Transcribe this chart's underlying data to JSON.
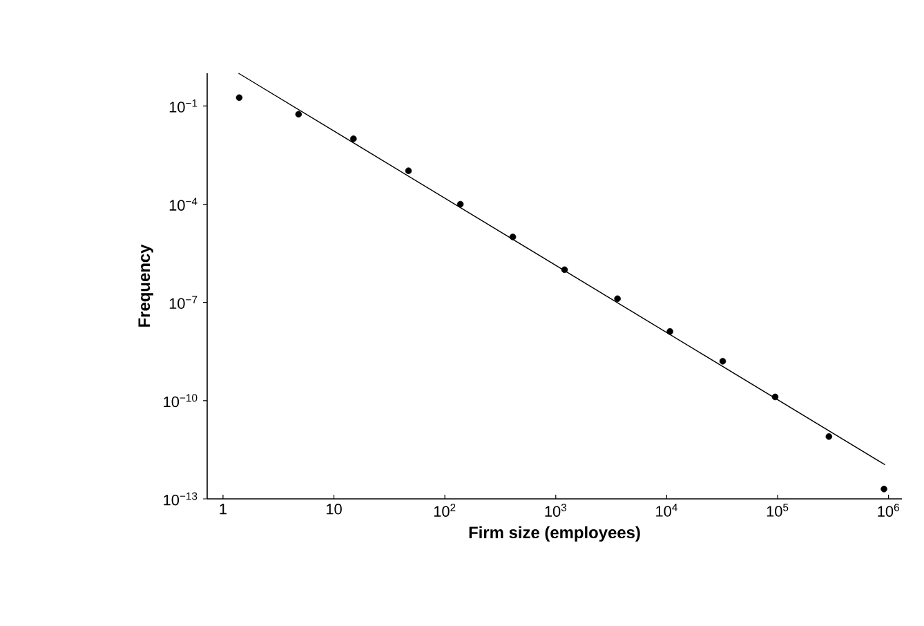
{
  "chart_data": {
    "type": "scatter",
    "xlabel": "Firm size (employees)",
    "ylabel": "Frequency",
    "log": "xy",
    "xlim": [
      0.72,
      1320000
    ],
    "ylim": [
      1e-13,
      1
    ],
    "xticks": [
      1,
      10,
      {
        "value": 100,
        "label": "10$^{2}$"
      },
      {
        "value": 1000,
        "label": "10$^{3}$"
      },
      {
        "value": 10000,
        "label": "10$^{4}$"
      },
      {
        "value": 100000,
        "label": "10$^{5}$"
      },
      {
        "value": 1000000,
        "label": "10$^{6}$"
      }
    ],
    "yticks": [
      {
        "value": 0.1,
        "label": "10$^{−1}$"
      },
      {
        "value": 0.0001,
        "label": "10$^{−4}$"
      },
      {
        "value": 1e-07,
        "label": "10$^{−7}$"
      },
      {
        "value": 1e-10,
        "label": "10$^{−10}$"
      },
      {
        "value": 1e-13,
        "label": "10$^{−13}$"
      }
    ],
    "series": [
      {
        "type": "scatter",
        "marker": "circle",
        "color": "#000000",
        "x": [
          1.4,
          4.8,
          15,
          47,
          138,
          410,
          1200,
          3600,
          10700,
          32000,
          95000,
          290000,
          910000
        ],
        "values": [
          0.18,
          0.056,
          0.01,
          0.00105,
          0.0001,
          1e-05,
          1e-06,
          1.3e-07,
          1.3e-08,
          1.6e-09,
          1.3e-10,
          8e-12,
          2e-13
        ]
      },
      {
        "type": "line",
        "marker": "none",
        "line_style": "solid",
        "color": "#000000",
        "x": [
          1.38,
          930000
        ],
        "values": [
          1,
          1.1e-12
        ]
      }
    ]
  }
}
